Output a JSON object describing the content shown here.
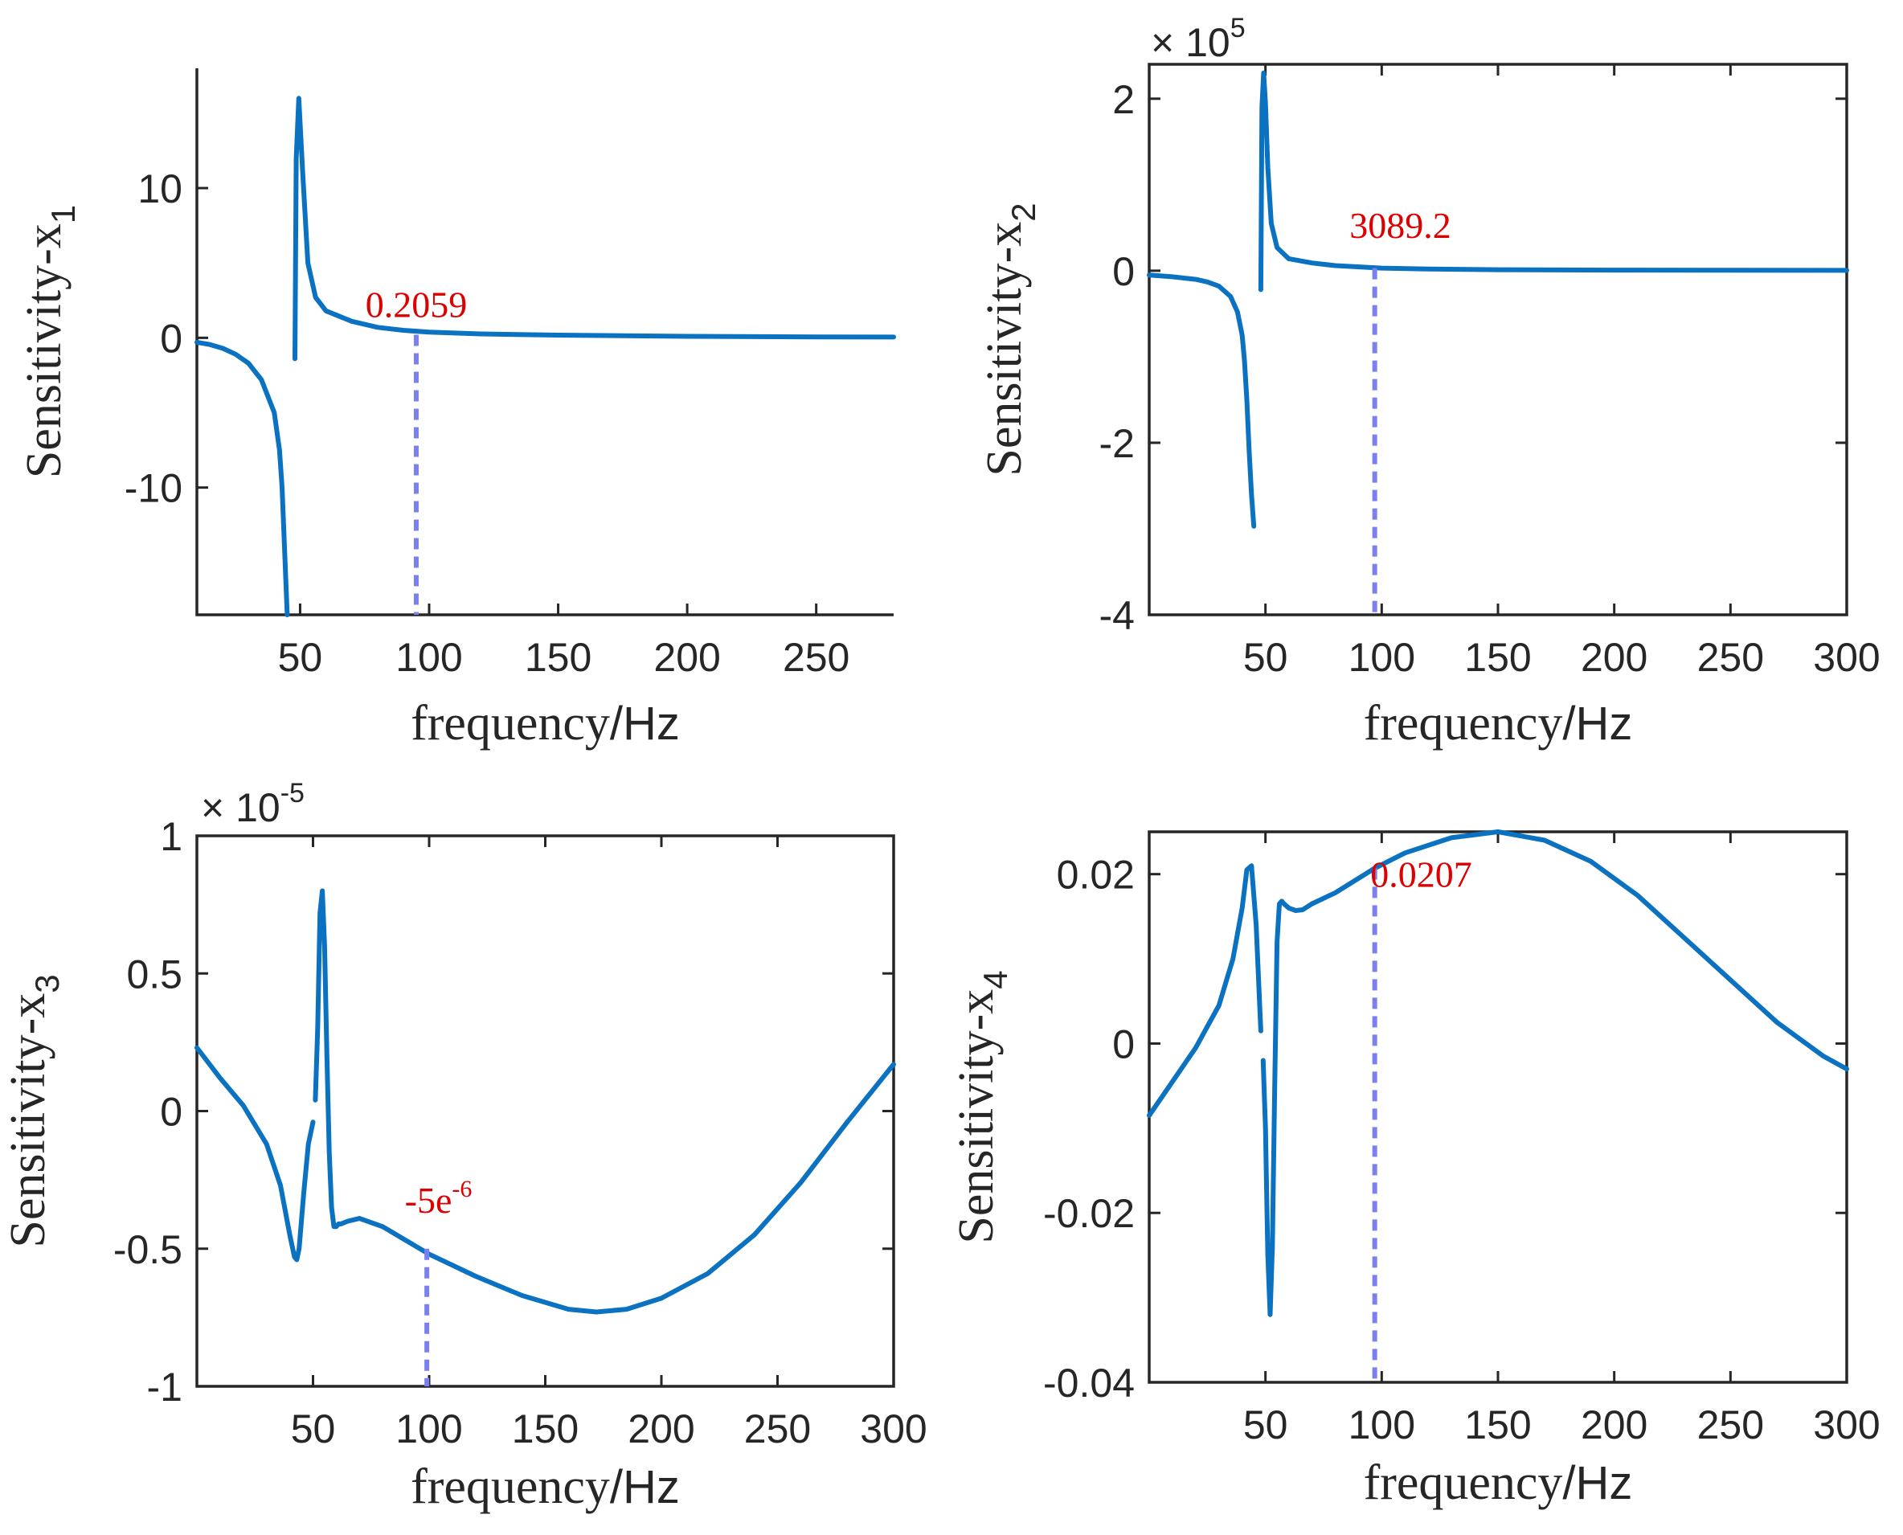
{
  "chart_data": [
    {
      "type": "line",
      "x_label": "frequency",
      "x_unit": "/Hz",
      "y_label": "Sensitivity-x",
      "y_sub": "1",
      "xlim": [
        10,
        280
      ],
      "ylim": [
        -18.5,
        18
      ],
      "x_ticks": [
        50,
        100,
        150,
        200,
        250
      ],
      "y_ticks": [
        {
          "v": -10,
          "label": "-10"
        },
        {
          "v": 0,
          "label": "0"
        },
        {
          "v": 10,
          "label": "10"
        }
      ],
      "box_sides": "left-bottom",
      "multiplier_base": "",
      "multiplier_exp": "",
      "series": [
        {
          "x": [
            10,
            15,
            20,
            25,
            30,
            35,
            40,
            42,
            43,
            45
          ],
          "y": [
            -0.3,
            -0.45,
            -0.7,
            -1.1,
            -1.7,
            -2.8,
            -5,
            -7.5,
            -10,
            -18.5
          ]
        },
        {
          "x": [
            48,
            48.5,
            49.5,
            51,
            53,
            56,
            60,
            70,
            80,
            90,
            100,
            120,
            150,
            200,
            250,
            280
          ],
          "y": [
            -1.4,
            12,
            16,
            11,
            5,
            2.7,
            1.8,
            1.1,
            0.7,
            0.5,
            0.38,
            0.26,
            0.18,
            0.1,
            0.06,
            0.05
          ]
        }
      ],
      "marker_x": 95,
      "marker_y_value": 0.2059,
      "annotation": "0.2059",
      "annotation_sup": "",
      "annotation_at": {
        "x": 95,
        "y": 1.4
      }
    },
    {
      "type": "line",
      "x_label": "frequency",
      "x_unit": "/Hz",
      "y_label": "Sensitivity-x",
      "y_sub": "2",
      "xlim": [
        0,
        300
      ],
      "ylim": [
        -4,
        2.4
      ],
      "x_ticks": [
        50,
        100,
        150,
        200,
        250,
        300
      ],
      "y_ticks": [
        {
          "v": -4,
          "label": "-4"
        },
        {
          "v": -2,
          "label": "-2"
        },
        {
          "v": 0,
          "label": "0"
        },
        {
          "v": 2,
          "label": "2"
        }
      ],
      "box_sides": "full",
      "multiplier_base": "× 10",
      "multiplier_exp": "5",
      "series": [
        {
          "x": [
            0,
            10,
            20,
            25,
            30,
            35,
            38,
            40,
            41,
            42,
            43,
            44,
            45
          ],
          "y": [
            -0.05,
            -0.07,
            -0.1,
            -0.13,
            -0.18,
            -0.3,
            -0.48,
            -0.75,
            -1.05,
            -1.5,
            -2.1,
            -2.6,
            -2.97
          ]
        },
        {
          "x": [
            48,
            48.5,
            49.2,
            50,
            51,
            52.5,
            55,
            60,
            70,
            80,
            100,
            120,
            150,
            200,
            250,
            300
          ],
          "y": [
            -0.22,
            1.9,
            2.3,
            1.95,
            1.2,
            0.55,
            0.27,
            0.14,
            0.09,
            0.06,
            0.031,
            0.02,
            0.012,
            0.007,
            0.005,
            0.004
          ]
        }
      ],
      "marker_x": 97,
      "marker_y_value": 0.030892,
      "annotation": "3089.2",
      "annotation_sup": "",
      "annotation_at": {
        "x": 108,
        "y": 0.38
      }
    },
    {
      "type": "line",
      "x_label": "frequency",
      "x_unit": "/Hz",
      "y_label": "Sensitivity-x",
      "y_sub": "3",
      "xlim": [
        0,
        300
      ],
      "ylim": [
        -1,
        1
      ],
      "x_ticks": [
        50,
        100,
        150,
        200,
        250,
        300
      ],
      "y_ticks": [
        {
          "v": -1,
          "label": "-1"
        },
        {
          "v": -0.5,
          "label": "-0.5"
        },
        {
          "v": 0,
          "label": "0"
        },
        {
          "v": 0.5,
          "label": "0.5"
        },
        {
          "v": 1,
          "label": "1"
        }
      ],
      "box_sides": "full",
      "multiplier_base": "× 10",
      "multiplier_exp": "-5",
      "series": [
        {
          "x": [
            0,
            10,
            20,
            30,
            36,
            40,
            42,
            43,
            44,
            46,
            48,
            50
          ],
          "y": [
            0.23,
            0.12,
            0.02,
            -0.12,
            -0.27,
            -0.45,
            -0.53,
            -0.54,
            -0.5,
            -0.3,
            -0.12,
            -0.04
          ]
        },
        {
          "x": [
            51,
            52,
            53,
            54,
            55,
            56,
            57,
            58,
            59,
            60,
            61,
            62,
            65,
            70
          ],
          "y": [
            0.04,
            0.3,
            0.72,
            0.8,
            0.6,
            0.2,
            -0.15,
            -0.35,
            -0.42,
            -0.42,
            -0.41,
            -0.41,
            -0.4,
            -0.39
          ]
        },
        {
          "x": [
            70,
            80,
            100,
            120,
            140,
            160,
            172,
            185,
            200,
            220,
            240,
            260,
            280,
            300
          ],
          "y": [
            -0.39,
            -0.42,
            -0.52,
            -0.6,
            -0.67,
            -0.72,
            -0.73,
            -0.72,
            -0.68,
            -0.59,
            -0.45,
            -0.26,
            -0.04,
            0.17
          ]
        }
      ],
      "marker_x": 99,
      "marker_y_value": -0.5,
      "annotation": "-5e",
      "annotation_sup": "-6",
      "annotation_at": {
        "x": 104,
        "y": -0.37
      }
    },
    {
      "type": "line",
      "x_label": "frequency",
      "x_unit": "/Hz",
      "y_label": "Sensitivity-x",
      "y_sub": "4",
      "xlim": [
        0,
        300
      ],
      "ylim": [
        -0.04,
        0.025
      ],
      "x_ticks": [
        50,
        100,
        150,
        200,
        250,
        300
      ],
      "y_ticks": [
        {
          "v": -0.04,
          "label": "-0.04"
        },
        {
          "v": -0.02,
          "label": "-0.02"
        },
        {
          "v": 0,
          "label": "0"
        },
        {
          "v": 0.02,
          "label": "0.02"
        }
      ],
      "box_sides": "full",
      "multiplier_base": "",
      "multiplier_exp": "",
      "series": [
        {
          "x": [
            0,
            10,
            20,
            30,
            36,
            40,
            42,
            44,
            46,
            48
          ],
          "y": [
            -0.0085,
            -0.0045,
            -0.0005,
            0.0045,
            0.01,
            0.016,
            0.0205,
            0.021,
            0.014,
            0.0015
          ]
        },
        {
          "x": [
            49,
            50,
            51,
            52,
            53,
            54,
            55,
            56,
            57,
            58,
            60,
            63,
            66,
            70
          ],
          "y": [
            -0.002,
            -0.01,
            -0.025,
            -0.032,
            -0.024,
            -0.005,
            0.012,
            0.0165,
            0.0168,
            0.0165,
            0.016,
            0.0157,
            0.0158,
            0.0165
          ]
        },
        {
          "x": [
            70,
            80,
            97,
            110,
            130,
            150,
            170,
            190,
            210,
            230,
            250,
            270,
            290,
            300
          ],
          "y": [
            0.0165,
            0.0178,
            0.0207,
            0.0225,
            0.0243,
            0.025,
            0.024,
            0.0215,
            0.0175,
            0.0125,
            0.0075,
            0.0025,
            -0.0015,
            -0.003
          ]
        }
      ],
      "marker_x": 97,
      "marker_y_value": 0.0207,
      "annotation": "0.0207",
      "annotation_sup": "",
      "annotation_at": {
        "x": 117,
        "y": 0.0185
      }
    }
  ],
  "colors": {
    "curve": "#0a72c0",
    "marker": "#7a80f0",
    "annotation": "#dd0000",
    "axis": "#262626"
  }
}
